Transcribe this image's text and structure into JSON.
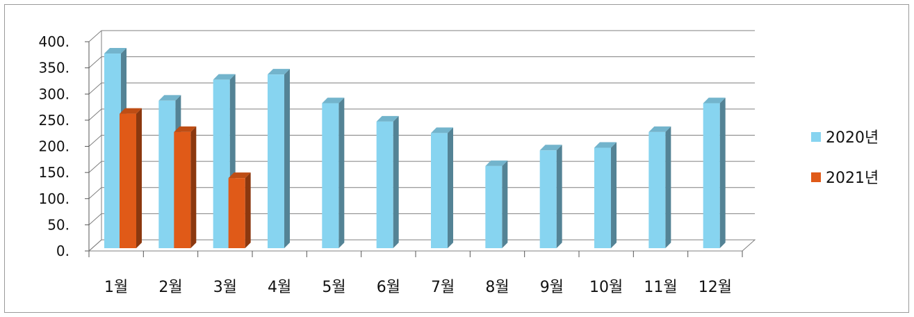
{
  "chart_data": {
    "type": "bar",
    "categories": [
      "1월",
      "2월",
      "3월",
      "4월",
      "5월",
      "6월",
      "7월",
      "8월",
      "9월",
      "10월",
      "11월",
      "12월"
    ],
    "series": [
      {
        "name": "2020년",
        "color": "#87d4f0",
        "values": [
          380,
          290,
          330,
          340,
          285,
          250,
          228,
          165,
          195,
          200,
          230,
          285
        ]
      },
      {
        "name": "2021년",
        "color": "#e05a18",
        "values": [
          265,
          230,
          142,
          null,
          null,
          null,
          null,
          null,
          null,
          null,
          null,
          null
        ]
      }
    ],
    "y_ticks": [
      "0.",
      "50.",
      "100.",
      "150.",
      "200.",
      "250.",
      "300.",
      "350.",
      "400."
    ],
    "ylim": [
      0,
      400
    ],
    "grid": true,
    "legend_position": "right",
    "title": "",
    "xlabel": "",
    "ylabel": ""
  }
}
